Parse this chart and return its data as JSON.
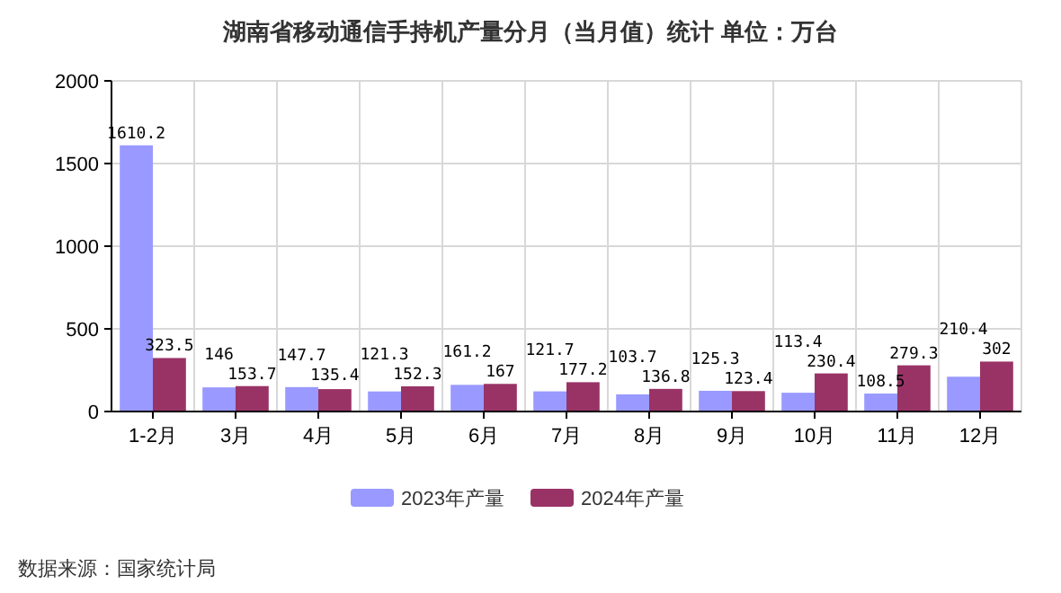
{
  "chart_data": {
    "type": "bar",
    "title": "湖南省移动通信手持机产量分月（当月值）统计  单位：万台",
    "categories": [
      "1-2月",
      "3月",
      "4月",
      "5月",
      "6月",
      "7月",
      "8月",
      "9月",
      "10月",
      "11月",
      "12月"
    ],
    "series": [
      {
        "name": "2023年产量",
        "color": "#9999ff",
        "values": [
          1610.2,
          146,
          147.7,
          121.3,
          161.2,
          121.7,
          103.7,
          125.3,
          113.4,
          108.5,
          210.4
        ]
      },
      {
        "name": "2024年产量",
        "color": "#993366",
        "values": [
          323.5,
          153.7,
          135.4,
          152.3,
          167,
          177.2,
          136.8,
          123.4,
          230.4,
          279.3,
          302
        ]
      }
    ],
    "ylim": [
      0,
      2000
    ],
    "yticks": [
      0,
      500,
      1000,
      1500,
      2000
    ],
    "grid": true,
    "legend": "bottom",
    "data_labels": true,
    "annotations": [
      "数据来源：国家统计局"
    ]
  }
}
